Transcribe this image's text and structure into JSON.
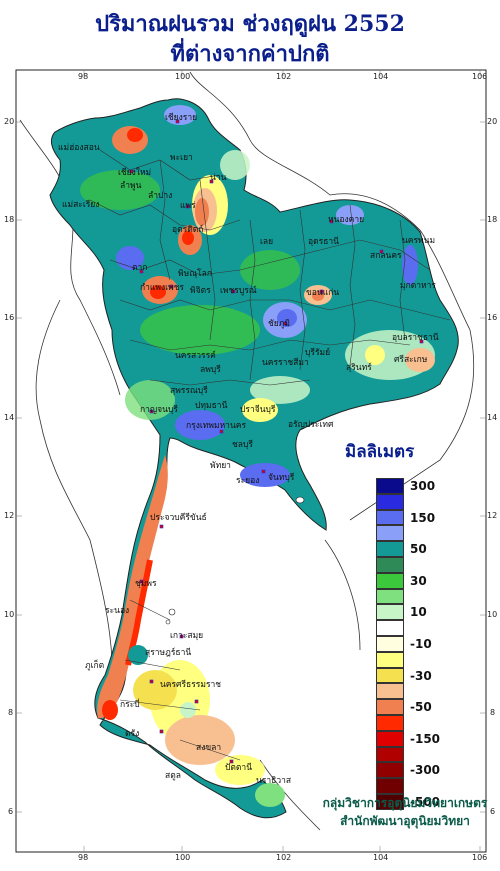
{
  "title_line1": "ปริมาณฝนรวม ช่วงฤดูฝน 2552",
  "title_line2": "ที่ต่างจากค่าปกติ",
  "legend": {
    "title": "มิลลิเมตร",
    "classes": [
      {
        "label": "300",
        "color": "#0a0a8c"
      },
      {
        "label": "",
        "color": "#2a2ae0"
      },
      {
        "label": "150",
        "color": "#5a6cf0"
      },
      {
        "label": "",
        "color": "#8aa0f8"
      },
      {
        "label": "50",
        "color": "#139a96"
      },
      {
        "label": "",
        "color": "#2e8b57"
      },
      {
        "label": "30",
        "color": "#3cc83c"
      },
      {
        "label": "",
        "color": "#7ee07e"
      },
      {
        "label": "10",
        "color": "#c8f5c8"
      },
      {
        "label": "",
        "color": "#ffffff"
      },
      {
        "label": "-10",
        "color": "#ffffe0"
      },
      {
        "label": "",
        "color": "#ffff80"
      },
      {
        "label": "-30",
        "color": "#f5e050"
      },
      {
        "label": "",
        "color": "#f8c090"
      },
      {
        "label": "-50",
        "color": "#f08050"
      },
      {
        "label": "",
        "color": "#ff2a00"
      },
      {
        "label": "-150",
        "color": "#e00000"
      },
      {
        "label": "",
        "color": "#b00000"
      },
      {
        "label": "-300",
        "color": "#900000"
      },
      {
        "label": "",
        "color": "#700000"
      },
      {
        "label": "-500",
        "color": "#500000"
      }
    ]
  },
  "credit_line1": "กลุ่มวิชาการอุตุนิยมวิทยาเกษตร",
  "credit_line2": "สำนักพัฒนาอุตุนิยมวิทยา",
  "lon_ticks": [
    "98",
    "100",
    "102",
    "104",
    "106"
  ],
  "lat_ticks": [
    "20",
    "18",
    "16",
    "14",
    "12",
    "10",
    "8",
    "6"
  ],
  "places": [
    "เชียงราย",
    "แม่ฮ่องสอน",
    "เชียงใหม่",
    "พะเยา",
    "ลำพูน",
    "น่าน",
    "ลำปาง",
    "แพร่",
    "แม่สะเรียง",
    "อุตรดิตถ์",
    "ตาก",
    "พิษณุโลก",
    "กำแพงเพชร",
    "พิจิตร",
    "เพชรบูรณ์",
    "หนองคาย",
    "อุดรธานี",
    "นครพนม",
    "สกลนคร",
    "มุกดาหาร",
    "เลย",
    "ขอนแก่น",
    "ชัยภูมิ",
    "อุบลราชธานี",
    "นครสวรรค์",
    "นครราชสีมา",
    "บุรีรัมย์",
    "สุรินทร์",
    "ศรีสะเกษ",
    "ลพบุรี",
    "สุพรรณบุรี",
    "กาญจนบุรี",
    "ปทุมธานี",
    "กรุงเทพมหานคร",
    "ปราจีนบุรี",
    "อรัญประเทศ",
    "ชลบุรี",
    "พัทยา",
    "ระยอง",
    "จันทบุรี",
    "ประจวบคีรีขันธ์",
    "ชุมพร",
    "ระนอง",
    "เกาะสมุย",
    "สุราษฎร์ธานี",
    "นครศรีธรรมราช",
    "ภูเก็ต",
    "กระบี่",
    "ตรัง",
    "สงขลา",
    "ปัตตานี",
    "นราธิวาส",
    "สตูล"
  ]
}
